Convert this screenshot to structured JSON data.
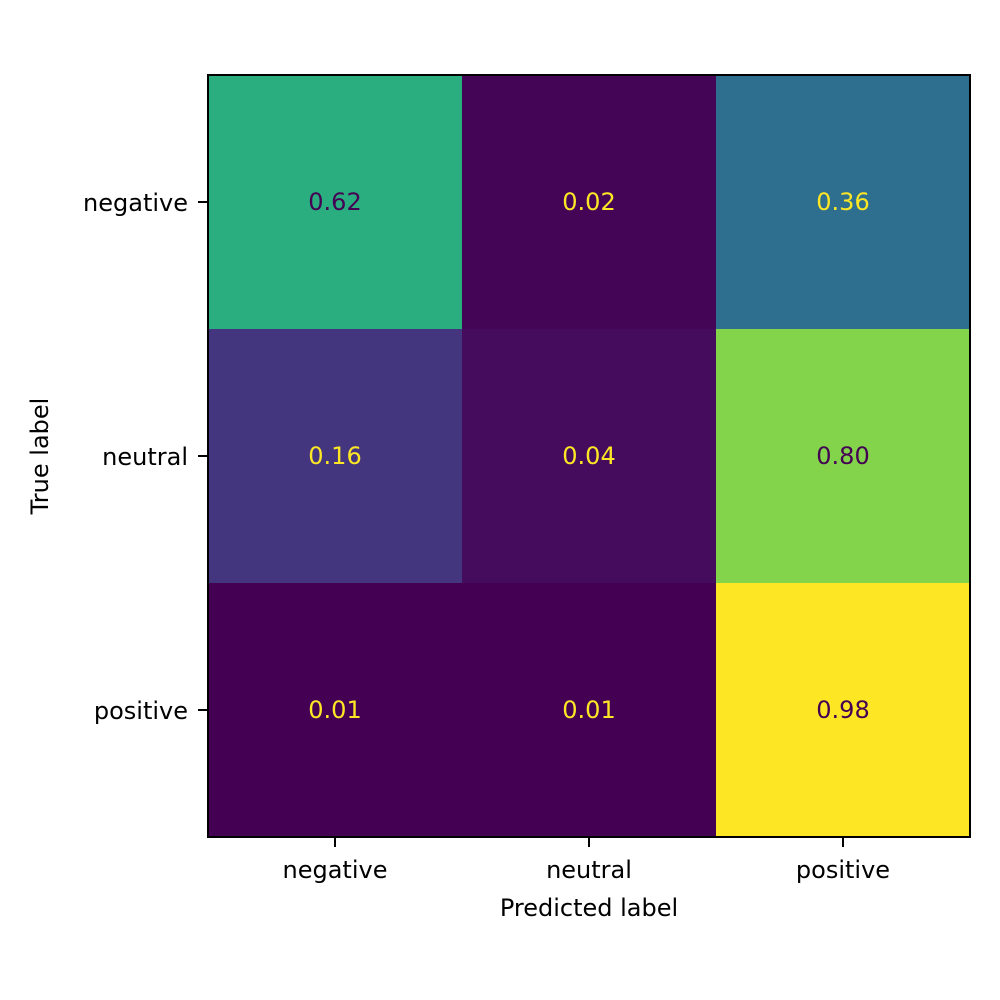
{
  "chart_data": {
    "type": "heatmap",
    "title": "",
    "xlabel": "Predicted label",
    "ylabel": "True label",
    "x_categories": [
      "negative",
      "neutral",
      "positive"
    ],
    "y_categories": [
      "negative",
      "neutral",
      "positive"
    ],
    "values": [
      [
        0.62,
        0.02,
        0.36
      ],
      [
        0.16,
        0.04,
        0.8
      ],
      [
        0.01,
        0.01,
        0.98
      ]
    ],
    "value_labels": [
      [
        "0.62",
        "0.02",
        "0.36"
      ],
      [
        "0.16",
        "0.04",
        "0.80"
      ],
      [
        "0.01",
        "0.01",
        "0.98"
      ]
    ],
    "colormap": "viridis",
    "color_range": [
      0.01,
      0.98
    ],
    "colorbar": false,
    "grid": false
  }
}
